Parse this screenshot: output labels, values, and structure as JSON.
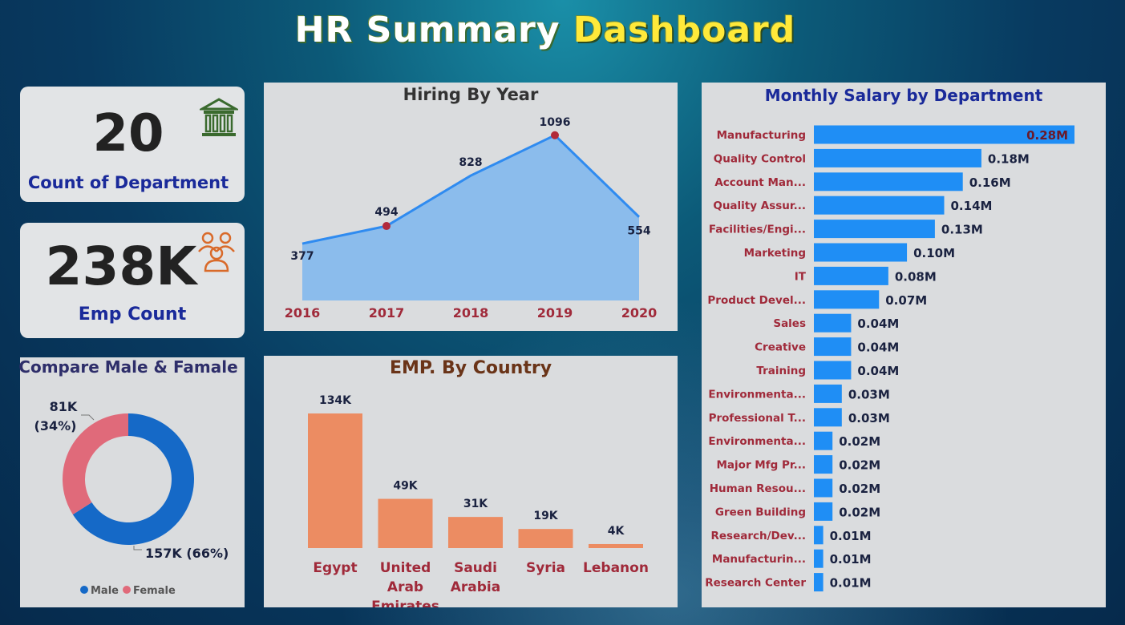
{
  "header": {
    "title_part1": "HR Summary",
    "title_part2": "Dashboard"
  },
  "kpis": {
    "departments": {
      "value": "20",
      "label": "Count of Department",
      "icon": "bank-icon"
    },
    "employees": {
      "value": "238K",
      "label": "Emp Count",
      "icon": "people-group-icon"
    }
  },
  "colors": {
    "area_fill": "#8bbcec",
    "line": "#2f8bf0",
    "marker": "#b22a3a",
    "country_bar": "#ec8c62",
    "salary_bar": "#1f8ef5",
    "male": "#1569c7",
    "female": "#e06a7a",
    "axis_label": "#a02a3a"
  },
  "chart_data": [
    {
      "type": "area",
      "title": "Hiring By Year",
      "x": [
        "2016",
        "2017",
        "2018",
        "2019",
        "2020"
      ],
      "values": [
        377,
        494,
        828,
        1096,
        554
      ],
      "data_labels": [
        "377",
        "494",
        "828",
        "1096",
        "554"
      ],
      "highlighted": [
        false,
        true,
        false,
        true,
        false
      ]
    },
    {
      "type": "bar",
      "title": "EMP. By Country",
      "categories": [
        [
          "Egypt"
        ],
        [
          "United",
          "Arab",
          "Emirates"
        ],
        [
          "Saudi",
          "Arabia"
        ],
        [
          "Syria"
        ],
        [
          "Lebanon"
        ]
      ],
      "values": [
        134,
        49,
        31,
        19,
        4
      ],
      "data_labels": [
        "134K",
        "49K",
        "31K",
        "19K",
        "4K"
      ]
    },
    {
      "type": "pie",
      "title": "Compare Male & Famale",
      "labels": [
        "Male",
        "Female"
      ],
      "values": [
        157,
        81
      ],
      "data_labels": [
        "157K (66%)",
        "81K\n(34%)"
      ],
      "legend": "bottom"
    },
    {
      "type": "bar",
      "orientation": "horizontal",
      "title": "Monthly Salary by Department",
      "categories": [
        "Manufacturing",
        "Quality Control",
        "Account Man...",
        "Quality Assur...",
        "Facilities/Engi...",
        "Marketing",
        "IT",
        "Product Devel...",
        "Sales",
        "Creative",
        "Training",
        "Environmenta...",
        "Professional T...",
        "Environmenta...",
        "Major Mfg Pr...",
        "Human Resou...",
        "Green Building",
        "Research/Dev...",
        "Manufacturin...",
        "Research Center"
      ],
      "values": [
        0.28,
        0.18,
        0.16,
        0.14,
        0.13,
        0.1,
        0.08,
        0.07,
        0.04,
        0.04,
        0.04,
        0.03,
        0.03,
        0.02,
        0.02,
        0.02,
        0.02,
        0.01,
        0.01,
        0.01
      ],
      "data_labels": [
        "0.28M",
        "0.18M",
        "0.16M",
        "0.14M",
        "0.13M",
        "0.10M",
        "0.08M",
        "0.07M",
        "0.04M",
        "0.04M",
        "0.04M",
        "0.03M",
        "0.03M",
        "0.02M",
        "0.02M",
        "0.02M",
        "0.02M",
        "0.01M",
        "0.01M",
        "0.01M"
      ]
    }
  ]
}
